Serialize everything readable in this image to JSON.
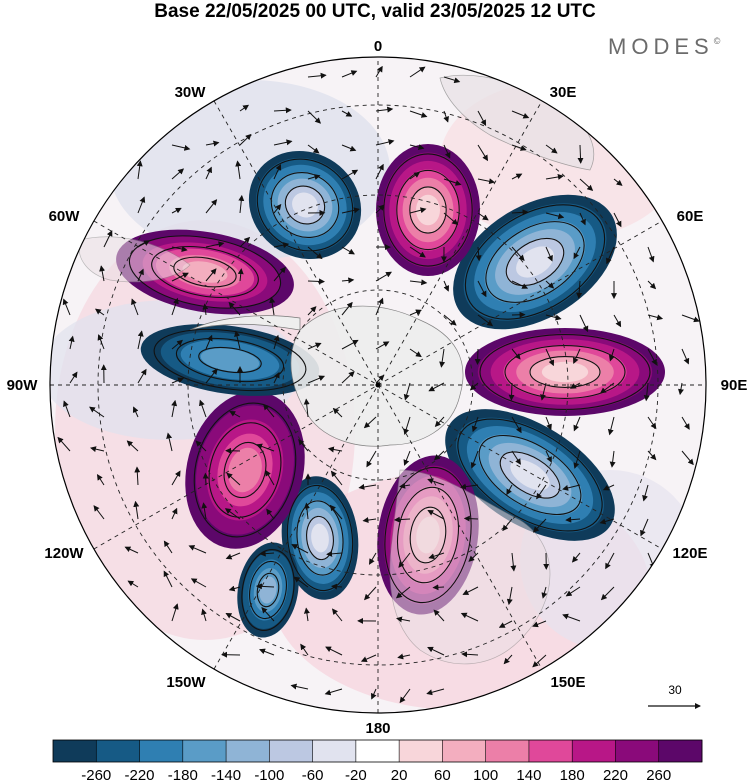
{
  "title": "Base 22/05/2025 00 UTC, valid 23/05/2025 12 UTC",
  "logo": {
    "text": "MODES",
    "mark": "©"
  },
  "map": {
    "projection": "south-polar-stereographic",
    "longitude_labels": [
      "0",
      "30E",
      "60E",
      "90E",
      "120E",
      "150E",
      "180",
      "150W",
      "120W",
      "90W",
      "60W",
      "30W"
    ],
    "reference_vector": {
      "label": "30"
    }
  },
  "colorbar": {
    "ticks": [
      "-260",
      "-220",
      "-180",
      "-140",
      "-100",
      "-60",
      "-20",
      "20",
      "60",
      "100",
      "140",
      "180",
      "220",
      "260"
    ],
    "colors": [
      "#0f3b5a",
      "#165a85",
      "#2f7fb2",
      "#5a9cc7",
      "#8fb4d6",
      "#bcc8e2",
      "#e1e3ef",
      "#ffffff",
      "#f8d6da",
      "#f3aebf",
      "#ec7fa8",
      "#e0489a",
      "#b81787",
      "#8a0a7a",
      "#5c0769"
    ]
  },
  "anomaly_cells": [
    {
      "name": "east-60e-negative",
      "sign": "negative",
      "peak": -260
    },
    {
      "name": "east-90e-positive",
      "sign": "positive",
      "peak": 260
    },
    {
      "name": "east-110e-negative",
      "sign": "negative",
      "peak": -260
    },
    {
      "name": "south-150e-positive",
      "sign": "positive",
      "peak": 260
    },
    {
      "name": "south-165w-negative",
      "sign": "negative",
      "peak": -260
    },
    {
      "name": "west-130w-positive",
      "sign": "positive",
      "peak": 180
    },
    {
      "name": "west-80w-negative",
      "sign": "negative",
      "peak": -140
    },
    {
      "name": "west-60w-positive",
      "sign": "positive",
      "peak": 220
    },
    {
      "name": "north-30w-negative",
      "sign": "negative",
      "peak": -260
    },
    {
      "name": "north-15e-positive",
      "sign": "positive",
      "peak": 260
    },
    {
      "name": "south-150w-negative",
      "sign": "negative",
      "peak": -180
    }
  ]
}
